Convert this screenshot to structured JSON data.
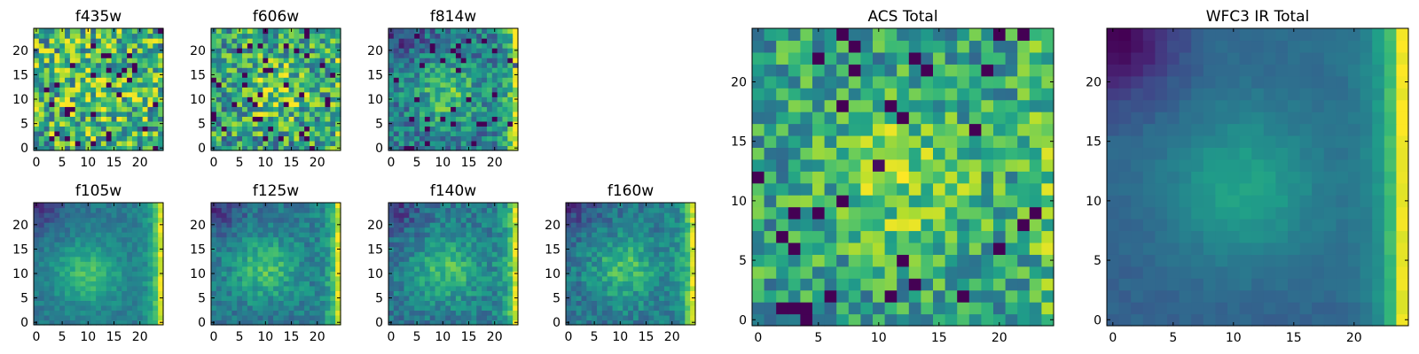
{
  "chart_data": [
    {
      "type": "heatmap",
      "title": "f435w",
      "colormap": "viridis",
      "xlim": [
        -0.5,
        24.5
      ],
      "ylim": [
        -0.5,
        24.5
      ],
      "x_ticks": [
        0,
        5,
        10,
        15,
        20
      ],
      "y_ticks": [
        0,
        5,
        10,
        15,
        20
      ],
      "x_tick_labels": [
        "0",
        "5",
        "10",
        "15",
        "20"
      ],
      "y_tick_labels": [
        "0",
        "5",
        "10",
        "15",
        "20"
      ],
      "grid": false,
      "pattern": "noise",
      "center": [
        12,
        12
      ],
      "noise": 0.38,
      "seed": 11
    },
    {
      "type": "heatmap",
      "title": "f606w",
      "colormap": "viridis",
      "xlim": [
        -0.5,
        24.5
      ],
      "ylim": [
        -0.5,
        24.5
      ],
      "x_ticks": [
        0,
        5,
        10,
        15,
        20
      ],
      "y_ticks": [
        0,
        5,
        10,
        15,
        20
      ],
      "x_tick_labels": [
        "0",
        "5",
        "10",
        "15",
        "20"
      ],
      "y_tick_labels": [
        "0",
        "5",
        "10",
        "15",
        "20"
      ],
      "grid": false,
      "pattern": "noise-center",
      "center": [
        12,
        12
      ],
      "noise": 0.34,
      "seed": 23
    },
    {
      "type": "heatmap",
      "title": "f814w",
      "colormap": "viridis",
      "xlim": [
        -0.5,
        24.5
      ],
      "ylim": [
        -0.5,
        24.5
      ],
      "x_ticks": [
        0,
        5,
        10,
        15,
        20
      ],
      "y_ticks": [
        0,
        5,
        10,
        15,
        20
      ],
      "x_tick_labels": [
        "0",
        "5",
        "10",
        "15",
        "20"
      ],
      "y_tick_labels": [
        "0",
        "5",
        "10",
        "15",
        "20"
      ],
      "grid": false,
      "pattern": "blob-edge",
      "center": [
        11,
        11
      ],
      "noise": 0.22,
      "seed": 37
    },
    {
      "type": "heatmap",
      "title": "f105w",
      "colormap": "viridis",
      "xlim": [
        -0.5,
        24.5
      ],
      "ylim": [
        -0.5,
        24.5
      ],
      "x_ticks": [
        0,
        5,
        10,
        15,
        20
      ],
      "y_ticks": [
        0,
        5,
        10,
        15,
        20
      ],
      "x_tick_labels": [
        "0",
        "5",
        "10",
        "15",
        "20"
      ],
      "y_tick_labels": [
        "0",
        "5",
        "10",
        "15",
        "20"
      ],
      "grid": false,
      "pattern": "blob-edge",
      "center": [
        10,
        10
      ],
      "noise": 0.08,
      "seed": 41
    },
    {
      "type": "heatmap",
      "title": "f125w",
      "colormap": "viridis",
      "xlim": [
        -0.5,
        24.5
      ],
      "ylim": [
        -0.5,
        24.5
      ],
      "x_ticks": [
        0,
        5,
        10,
        15,
        20
      ],
      "y_ticks": [
        0,
        5,
        10,
        15,
        20
      ],
      "x_tick_labels": [
        "0",
        "5",
        "10",
        "15",
        "20"
      ],
      "y_tick_labels": [
        "0",
        "5",
        "10",
        "15",
        "20"
      ],
      "grid": false,
      "pattern": "blob-edge",
      "center": [
        10,
        11
      ],
      "noise": 0.12,
      "seed": 53
    },
    {
      "type": "heatmap",
      "title": "f140w",
      "colormap": "viridis",
      "xlim": [
        -0.5,
        24.5
      ],
      "ylim": [
        -0.5,
        24.5
      ],
      "x_ticks": [
        0,
        5,
        10,
        15,
        20
      ],
      "y_ticks": [
        0,
        5,
        10,
        15,
        20
      ],
      "x_tick_labels": [
        "0",
        "5",
        "10",
        "15",
        "20"
      ],
      "y_tick_labels": [
        "0",
        "5",
        "10",
        "15",
        "20"
      ],
      "grid": false,
      "pattern": "blob-edge",
      "center": [
        11,
        11
      ],
      "noise": 0.13,
      "seed": 67
    },
    {
      "type": "heatmap",
      "title": "f160w",
      "colormap": "viridis",
      "xlim": [
        -0.5,
        24.5
      ],
      "ylim": [
        -0.5,
        24.5
      ],
      "x_ticks": [
        0,
        5,
        10,
        15,
        20
      ],
      "y_ticks": [
        0,
        5,
        10,
        15,
        20
      ],
      "x_tick_labels": [
        "0",
        "5",
        "10",
        "15",
        "20"
      ],
      "y_tick_labels": [
        "0",
        "5",
        "10",
        "15",
        "20"
      ],
      "grid": false,
      "pattern": "blob-edge",
      "center": [
        11,
        11
      ],
      "noise": 0.13,
      "seed": 79
    },
    {
      "type": "heatmap",
      "title": "ACS Total",
      "colormap": "viridis",
      "xlim": [
        -0.5,
        24.5
      ],
      "ylim": [
        -0.5,
        24.5
      ],
      "x_ticks": [
        0,
        5,
        10,
        15,
        20
      ],
      "y_ticks": [
        0,
        5,
        10,
        15,
        20
      ],
      "x_tick_labels": [
        "0",
        "5",
        "10",
        "15",
        "20"
      ],
      "y_tick_labels": [
        "0",
        "5",
        "10",
        "15",
        "20"
      ],
      "grid": false,
      "pattern": "noise-center",
      "center": [
        12,
        12
      ],
      "noise": 0.26,
      "seed": 97
    },
    {
      "type": "heatmap",
      "title": "WFC3 IR Total",
      "colormap": "viridis",
      "xlim": [
        -0.5,
        24.5
      ],
      "ylim": [
        -0.5,
        24.5
      ],
      "x_ticks": [
        0,
        5,
        10,
        15,
        20
      ],
      "y_ticks": [
        0,
        5,
        10,
        15,
        20
      ],
      "x_tick_labels": [
        "0",
        "5",
        "10",
        "15",
        "20"
      ],
      "y_tick_labels": [
        "0",
        "5",
        "10",
        "15",
        "20"
      ],
      "grid": false,
      "pattern": "smooth-edge",
      "center": [
        11,
        11
      ],
      "noise": 0.03,
      "seed": 101
    }
  ]
}
